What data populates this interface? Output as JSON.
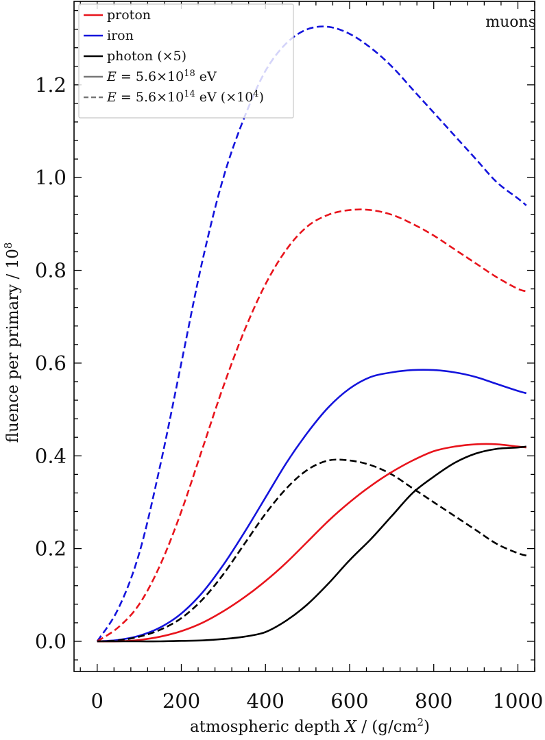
{
  "chart_data": {
    "type": "line",
    "title": "",
    "annotation": "muons",
    "xlabel": {
      "text": "atmospheric depth ",
      "var": "X",
      "unit_pre": " / (g/cm",
      "unit_sup": "2",
      "unit_post": ")"
    },
    "ylabel": "fluence per primary / 10",
    "ylabel_sup": "8",
    "xlim": [
      -55,
      1040
    ],
    "ylim": [
      -0.065,
      1.38
    ],
    "xticks": [
      0,
      200,
      400,
      600,
      800,
      1000
    ],
    "xtick_labels": [
      "0",
      "200",
      "400",
      "600",
      "800",
      "1000"
    ],
    "yticks": [
      0.0,
      0.2,
      0.4,
      0.6,
      0.8,
      1.0,
      1.2
    ],
    "ytick_labels": [
      "0.0",
      "0.2",
      "0.4",
      "0.6",
      "0.8",
      "1.0",
      "1.2"
    ],
    "legend_position": "top-left",
    "legend": [
      {
        "label": "proton",
        "color": "#e8141c",
        "dash": "solid"
      },
      {
        "label": "iron",
        "color": "#1414dc",
        "dash": "solid"
      },
      {
        "label": "photon (×5)",
        "color": "#000000",
        "dash": "solid"
      },
      {
        "label_var": "E",
        "label_mid": " = 5.6×10",
        "label_sup": "18",
        "label_post": " eV",
        "color": "#777777",
        "dash": "solid"
      },
      {
        "label_var": "E",
        "label_mid": " = 5.6×10",
        "label_sup": "14",
        "label_post": " eV (×10",
        "label_sup2": "4",
        "label_post2": ")",
        "color": "#777777",
        "dash": "dashed"
      }
    ],
    "x": [
      0,
      50,
      100,
      150,
      200,
      250,
      300,
      350,
      400,
      450,
      500,
      550,
      600,
      650,
      700,
      750,
      800,
      850,
      900,
      950,
      1000,
      1020
    ],
    "series": [
      {
        "particle": "iron",
        "energy": "5.6e14",
        "color": "#1414dc",
        "dash": "dashed",
        "values": [
          0.0,
          0.07,
          0.19,
          0.38,
          0.6,
          0.82,
          1.0,
          1.13,
          1.23,
          1.29,
          1.32,
          1.325,
          1.31,
          1.28,
          1.24,
          1.19,
          1.14,
          1.09,
          1.04,
          0.99,
          0.955,
          0.94
        ]
      },
      {
        "particle": "proton",
        "energy": "5.6e14",
        "color": "#e8141c",
        "dash": "dashed",
        "values": [
          0.0,
          0.03,
          0.08,
          0.165,
          0.28,
          0.415,
          0.55,
          0.67,
          0.77,
          0.845,
          0.895,
          0.92,
          0.93,
          0.93,
          0.92,
          0.9,
          0.875,
          0.845,
          0.815,
          0.785,
          0.76,
          0.755
        ]
      },
      {
        "particle": "iron",
        "energy": "5.6e18",
        "color": "#1414dc",
        "dash": "solid",
        "values": [
          0.0,
          0.003,
          0.012,
          0.03,
          0.06,
          0.105,
          0.165,
          0.235,
          0.31,
          0.385,
          0.45,
          0.505,
          0.545,
          0.57,
          0.58,
          0.585,
          0.585,
          0.58,
          0.57,
          0.555,
          0.54,
          0.535
        ]
      },
      {
        "particle": "photon",
        "energy": "5.6e14",
        "color": "#000000",
        "dash": "dashed",
        "values": [
          0.0,
          0.002,
          0.01,
          0.025,
          0.05,
          0.09,
          0.145,
          0.21,
          0.275,
          0.33,
          0.37,
          0.39,
          0.39,
          0.38,
          0.36,
          0.33,
          0.3,
          0.27,
          0.24,
          0.21,
          0.19,
          0.185
        ]
      },
      {
        "particle": "proton",
        "energy": "5.6e18",
        "color": "#e8141c",
        "dash": "solid",
        "values": [
          0.0,
          0.0,
          0.003,
          0.01,
          0.022,
          0.04,
          0.065,
          0.095,
          0.13,
          0.17,
          0.215,
          0.26,
          0.3,
          0.335,
          0.365,
          0.39,
          0.41,
          0.42,
          0.425,
          0.425,
          0.42,
          0.418
        ]
      },
      {
        "particle": "photon",
        "energy": "5.6e18",
        "color": "#000000",
        "dash": "solid",
        "values": [
          0.0,
          0.0,
          0.0,
          0.0,
          0.001,
          0.002,
          0.005,
          0.01,
          0.02,
          0.045,
          0.08,
          0.125,
          0.175,
          0.22,
          0.27,
          0.32,
          0.355,
          0.385,
          0.405,
          0.415,
          0.418,
          0.42
        ]
      }
    ]
  }
}
